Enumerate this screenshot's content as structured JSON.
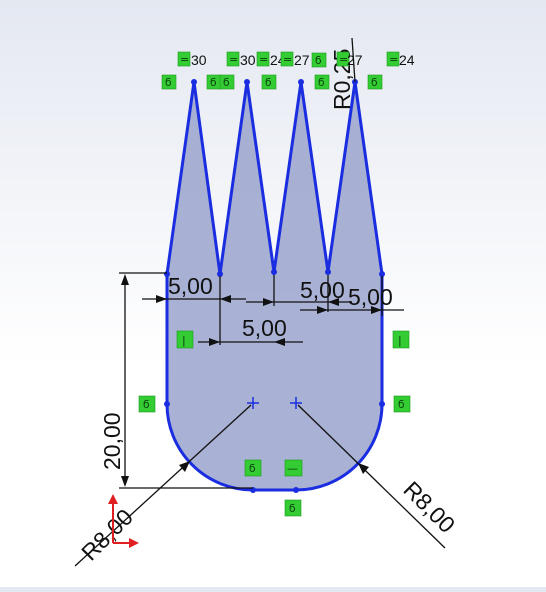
{
  "dimensions": {
    "width_top_left": "5,00",
    "width_middle": "5,00",
    "width_top_right": "5,00",
    "width_right": "5,00",
    "height": "20,00",
    "radius_left": "R8,00",
    "radius_right": "R8,00",
    "radius_tip": "R0,25"
  },
  "tip_dimensions": [
    "30",
    "30",
    "24",
    "27",
    "27",
    "24"
  ],
  "relation_glyphs": {
    "coincident": "ϭ",
    "equal": "=",
    "vertical": "|",
    "horizontal": "—"
  },
  "colors": {
    "profile_stroke": "#1a2de0",
    "profile_fill": "#9aa3cc",
    "relation_badge": "#33cc33",
    "dimension": "#111111",
    "axis_y": "#e02020",
    "axis_x": "#e02020"
  }
}
